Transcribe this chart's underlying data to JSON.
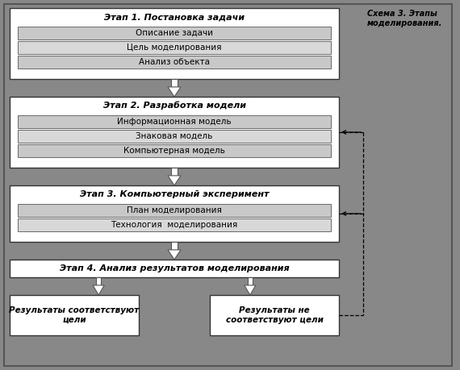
{
  "background_color": "#888888",
  "outer_rect_color": "#777777",
  "box_bg": "#ffffff",
  "inner_box_bg1": "#c8c8c8",
  "inner_box_bg2": "#d8d8d8",
  "border_color": "#333333",
  "text_color": "#000000",
  "title_text": "Схема 3. Этапы\nмоделирования.",
  "stage1_title": "Этап 1. Постановка задачи",
  "stage1_items": [
    "Описание задачи",
    "Цель моделирования",
    "Анализ объекта"
  ],
  "stage2_title": "Этап 2. Разработка модели",
  "stage2_items": [
    "Информационная модель",
    "Знаковая модель",
    "Компьютерная модель"
  ],
  "stage3_title": "Этап 3. Компьютерный эксперимент",
  "stage3_items": [
    "План моделирования",
    "Технология  моделирования"
  ],
  "stage4_title": "Этап 4. Анализ результатов моделирования",
  "result1_title": "Результаты соответствуют\nцели",
  "result2_title": "Результаты не\nсоответствуют цели"
}
